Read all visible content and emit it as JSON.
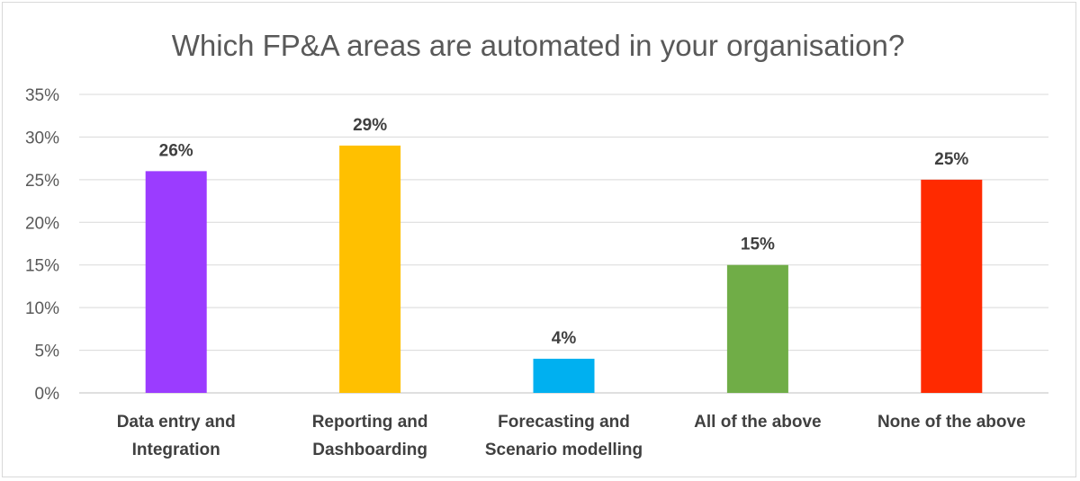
{
  "chart_data": {
    "type": "bar",
    "title": "Which FP&A areas are automated in your organisation?",
    "categories": [
      [
        "Data entry and",
        "Integration"
      ],
      [
        "Reporting and",
        "Dashboarding"
      ],
      [
        "Forecasting and",
        "Scenario modelling"
      ],
      [
        "All of the above"
      ],
      [
        "None of the above"
      ]
    ],
    "values": [
      26,
      29,
      4,
      15,
      25
    ],
    "data_labels": [
      "26%",
      "29%",
      "4%",
      "15%",
      "25%"
    ],
    "colors": [
      "#9B3CFF",
      "#FFC000",
      "#00B0F0",
      "#70AD47",
      "#FF2A00"
    ],
    "ylim": [
      0,
      35
    ],
    "y_ticks": [
      0,
      5,
      10,
      15,
      20,
      25,
      30,
      35
    ],
    "y_tick_labels": [
      "0%",
      "5%",
      "10%",
      "15%",
      "20%",
      "25%",
      "30%",
      "35%"
    ],
    "xlabel": "",
    "ylabel": "",
    "grid": true,
    "legend": "none"
  }
}
